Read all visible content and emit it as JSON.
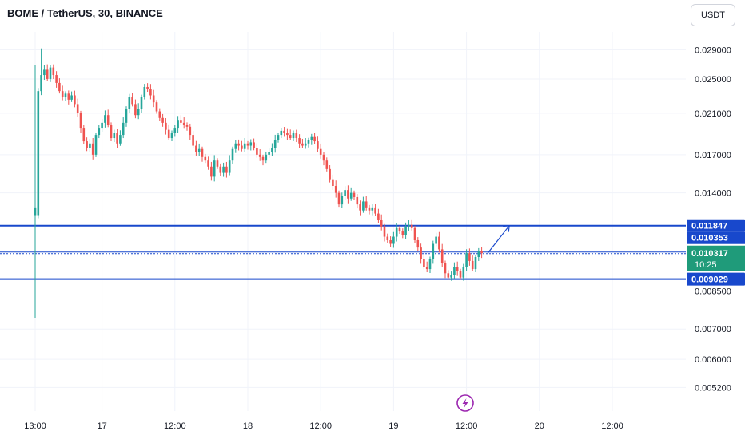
{
  "header": {
    "title": "BOME / TetherUS, 30, BINANCE",
    "currency_label": "USDT"
  },
  "colors": {
    "up": "#26a69a",
    "down": "#ef5350",
    "level_line": "#1848cc",
    "current_price_bg": "#1f9b7a",
    "grid": "#f0f3fa",
    "axis_text": "#131722",
    "lightning": "#9c27b0"
  },
  "chart_data": {
    "type": "candlestick",
    "title": "BOME / TetherUS, 30, BINANCE",
    "y_scale": "log",
    "ylim": [
      0.0049,
      0.0305
    ],
    "y_ticks": [
      {
        "value": 0.029,
        "label": "0.029000"
      },
      {
        "value": 0.025,
        "label": "0.025000"
      },
      {
        "value": 0.021,
        "label": "0.021000"
      },
      {
        "value": 0.017,
        "label": "0.017000"
      },
      {
        "value": 0.014,
        "label": "0.014000"
      },
      {
        "value": 0.0085,
        "label": "0.008500"
      },
      {
        "value": 0.007,
        "label": "0.007000"
      },
      {
        "value": 0.006,
        "label": "0.006000"
      },
      {
        "value": 0.0052,
        "label": "0.005200"
      }
    ],
    "x_ticks": [
      {
        "label": "13:00",
        "bar": 0
      },
      {
        "label": "17",
        "bar": 22
      },
      {
        "label": "12:00",
        "bar": 46
      },
      {
        "label": "18",
        "bar": 70
      },
      {
        "label": "12:00",
        "bar": 94
      },
      {
        "label": "19",
        "bar": 118
      },
      {
        "label": "12:00",
        "bar": 142
      },
      {
        "label": "20",
        "bar": 166
      },
      {
        "label": "12:00",
        "bar": 190
      }
    ],
    "grid": true,
    "closes": [
      0.0125,
      0.0235,
      0.0255,
      0.0262,
      0.025,
      0.0265,
      0.0255,
      0.0245,
      0.0235,
      0.0228,
      0.0232,
      0.0225,
      0.023,
      0.022,
      0.021,
      0.0195,
      0.0182,
      0.0176,
      0.018,
      0.017,
      0.0188,
      0.0195,
      0.02,
      0.0208,
      0.0198,
      0.0185,
      0.019,
      0.018,
      0.0188,
      0.02,
      0.0215,
      0.0228,
      0.022,
      0.0208,
      0.0215,
      0.0228,
      0.024,
      0.0238,
      0.023,
      0.0222,
      0.0212,
      0.0205,
      0.02,
      0.0193,
      0.0185,
      0.019,
      0.0195,
      0.0203,
      0.02,
      0.0198,
      0.0196,
      0.0188,
      0.0178,
      0.0172,
      0.0175,
      0.0168,
      0.0165,
      0.016,
      0.0152,
      0.0165,
      0.016,
      0.0155,
      0.016,
      0.0155,
      0.0165,
      0.0175,
      0.018,
      0.0178,
      0.0175,
      0.018,
      0.0178,
      0.0181,
      0.0176,
      0.017,
      0.0168,
      0.0165,
      0.017,
      0.0172,
      0.0176,
      0.0183,
      0.0188,
      0.0192,
      0.019,
      0.0188,
      0.0185,
      0.019,
      0.0185,
      0.018,
      0.0178,
      0.018,
      0.0183,
      0.0186,
      0.0182,
      0.0175,
      0.017,
      0.0165,
      0.0158,
      0.015,
      0.0145,
      0.014,
      0.0132,
      0.0138,
      0.0142,
      0.0136,
      0.014,
      0.0137,
      0.0132,
      0.0128,
      0.0134,
      0.013,
      0.0128,
      0.013,
      0.0126,
      0.0122,
      0.0118,
      0.0112,
      0.011,
      0.0108,
      0.0112,
      0.0117,
      0.0115,
      0.0113,
      0.0118,
      0.0119,
      0.0117,
      0.011,
      0.0106,
      0.01,
      0.0096,
      0.0095,
      0.01,
      0.0108,
      0.0112,
      0.0105,
      0.0098,
      0.0093,
      0.0091,
      0.0092,
      0.0096,
      0.0094,
      0.0091,
      0.0096,
      0.0103,
      0.0099,
      0.0095,
      0.0101,
      0.0104,
      0.0103
    ],
    "levels": [
      {
        "value": 0.011847,
        "label": "0.011847"
      },
      {
        "value": 0.010317,
        "label": "0.010317"
      },
      {
        "value": 0.009029,
        "label": "0.009029"
      }
    ],
    "overlay_label": "0.010353",
    "current_price": {
      "value": 0.010317,
      "label": "0.010317",
      "countdown": "10:25"
    },
    "projection": {
      "from_bar": 149,
      "from_value": 0.0103,
      "to_bar": 154,
      "to_value": 0.01185
    }
  }
}
